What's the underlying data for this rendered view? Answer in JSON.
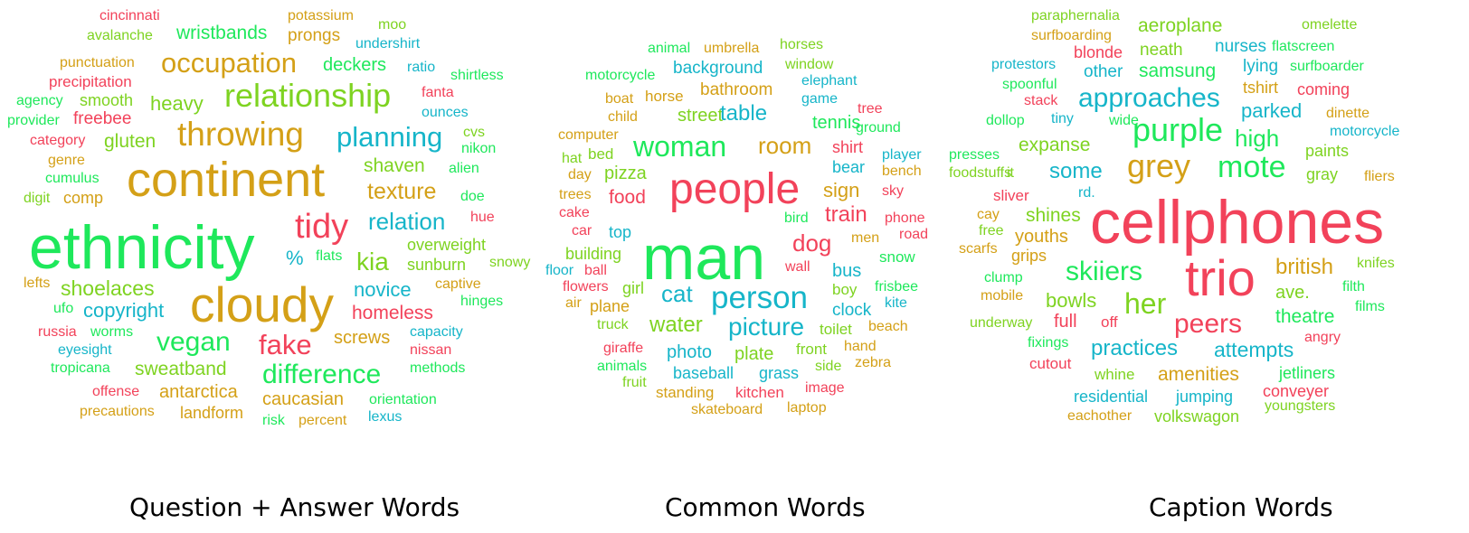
{
  "palette": {
    "orange": "#d4a017",
    "green": "#1ee85b",
    "lime": "#7ed321",
    "cyan": "#16b5c9",
    "red": "#f2425a"
  },
  "captions": {
    "qa": "Question + Answer Words",
    "common": "Common Words",
    "caption": "Caption Words"
  },
  "clouds": {
    "qa": [
      {
        "text": "cincinnati",
        "color": "red"
      },
      {
        "text": "potassium",
        "color": "orange"
      },
      {
        "text": "moo",
        "color": "lime"
      },
      {
        "text": "avalanche",
        "color": "lime"
      },
      {
        "text": "wristbands",
        "color": "green"
      },
      {
        "text": "prongs",
        "color": "orange"
      },
      {
        "text": "undershirt",
        "color": "cyan"
      },
      {
        "text": "punctuation",
        "color": "orange"
      },
      {
        "text": "occupation",
        "color": "orange"
      },
      {
        "text": "deckers",
        "color": "green"
      },
      {
        "text": "ratio",
        "color": "cyan"
      },
      {
        "text": "shirtless",
        "color": "green"
      },
      {
        "text": "precipitation",
        "color": "red"
      },
      {
        "text": "fanta",
        "color": "red"
      },
      {
        "text": "agency",
        "color": "green"
      },
      {
        "text": "smooth",
        "color": "lime"
      },
      {
        "text": "heavy",
        "color": "lime"
      },
      {
        "text": "relationship",
        "color": "lime"
      },
      {
        "text": "ounces",
        "color": "cyan"
      },
      {
        "text": "provider",
        "color": "green"
      },
      {
        "text": "freebee",
        "color": "red"
      },
      {
        "text": "throwing",
        "color": "orange"
      },
      {
        "text": "planning",
        "color": "cyan"
      },
      {
        "text": "cvs",
        "color": "lime"
      },
      {
        "text": "category",
        "color": "red"
      },
      {
        "text": "gluten",
        "color": "lime"
      },
      {
        "text": "nikon",
        "color": "green"
      },
      {
        "text": "genre",
        "color": "orange"
      },
      {
        "text": "shaven",
        "color": "lime"
      },
      {
        "text": "alien",
        "color": "green"
      },
      {
        "text": "cumulus",
        "color": "green"
      },
      {
        "text": "continent",
        "color": "orange"
      },
      {
        "text": "digit",
        "color": "lime"
      },
      {
        "text": "comp",
        "color": "orange"
      },
      {
        "text": "texture",
        "color": "orange"
      },
      {
        "text": "doe",
        "color": "green"
      },
      {
        "text": "tidy",
        "color": "red"
      },
      {
        "text": "relation",
        "color": "cyan"
      },
      {
        "text": "hue",
        "color": "red"
      },
      {
        "text": "ethnicity",
        "color": "green"
      },
      {
        "text": "overweight",
        "color": "lime"
      },
      {
        "text": "%",
        "color": "cyan"
      },
      {
        "text": "flats",
        "color": "green"
      },
      {
        "text": "kia",
        "color": "lime"
      },
      {
        "text": "sunburn",
        "color": "lime"
      },
      {
        "text": "snowy",
        "color": "lime"
      },
      {
        "text": "lefts",
        "color": "orange"
      },
      {
        "text": "shoelaces",
        "color": "lime"
      },
      {
        "text": "novice",
        "color": "cyan"
      },
      {
        "text": "captive",
        "color": "orange"
      },
      {
        "text": "ufo",
        "color": "green"
      },
      {
        "text": "copyright",
        "color": "cyan"
      },
      {
        "text": "cloudy",
        "color": "orange"
      },
      {
        "text": "hinges",
        "color": "green"
      },
      {
        "text": "homeless",
        "color": "red"
      },
      {
        "text": "russia",
        "color": "red"
      },
      {
        "text": "worms",
        "color": "green"
      },
      {
        "text": "vegan",
        "color": "green"
      },
      {
        "text": "fake",
        "color": "red"
      },
      {
        "text": "screws",
        "color": "orange"
      },
      {
        "text": "capacity",
        "color": "cyan"
      },
      {
        "text": "eyesight",
        "color": "cyan"
      },
      {
        "text": "nissan",
        "color": "red"
      },
      {
        "text": "tropicana",
        "color": "green"
      },
      {
        "text": "sweatband",
        "color": "lime"
      },
      {
        "text": "difference",
        "color": "green"
      },
      {
        "text": "methods",
        "color": "green"
      },
      {
        "text": "offense",
        "color": "red"
      },
      {
        "text": "antarctica",
        "color": "orange"
      },
      {
        "text": "orientation",
        "color": "green"
      },
      {
        "text": "caucasian",
        "color": "orange"
      },
      {
        "text": "precautions",
        "color": "orange"
      },
      {
        "text": "landform",
        "color": "orange"
      },
      {
        "text": "risk",
        "color": "green"
      },
      {
        "text": "percent",
        "color": "orange"
      },
      {
        "text": "lexus",
        "color": "cyan"
      }
    ],
    "common": [
      {
        "text": "animal",
        "color": "green"
      },
      {
        "text": "umbrella",
        "color": "orange"
      },
      {
        "text": "horses",
        "color": "lime"
      },
      {
        "text": "motorcycle",
        "color": "green"
      },
      {
        "text": "background",
        "color": "cyan"
      },
      {
        "text": "window",
        "color": "lime"
      },
      {
        "text": "elephant",
        "color": "cyan"
      },
      {
        "text": "boat",
        "color": "orange"
      },
      {
        "text": "horse",
        "color": "orange"
      },
      {
        "text": "bathroom",
        "color": "orange"
      },
      {
        "text": "game",
        "color": "cyan"
      },
      {
        "text": "tree",
        "color": "red"
      },
      {
        "text": "child",
        "color": "orange"
      },
      {
        "text": "street",
        "color": "lime"
      },
      {
        "text": "table",
        "color": "cyan"
      },
      {
        "text": "tennis",
        "color": "green"
      },
      {
        "text": "ground",
        "color": "green"
      },
      {
        "text": "computer",
        "color": "orange"
      },
      {
        "text": "woman",
        "color": "green"
      },
      {
        "text": "room",
        "color": "orange"
      },
      {
        "text": "shirt",
        "color": "red"
      },
      {
        "text": "hat",
        "color": "lime"
      },
      {
        "text": "bed",
        "color": "lime"
      },
      {
        "text": "player",
        "color": "cyan"
      },
      {
        "text": "day",
        "color": "orange"
      },
      {
        "text": "pizza",
        "color": "lime"
      },
      {
        "text": "people",
        "color": "red"
      },
      {
        "text": "bear",
        "color": "cyan"
      },
      {
        "text": "bench",
        "color": "orange"
      },
      {
        "text": "trees",
        "color": "orange"
      },
      {
        "text": "food",
        "color": "red"
      },
      {
        "text": "sign",
        "color": "orange"
      },
      {
        "text": "sky",
        "color": "red"
      },
      {
        "text": "cake",
        "color": "red"
      },
      {
        "text": "train",
        "color": "red"
      },
      {
        "text": "bird",
        "color": "green"
      },
      {
        "text": "phone",
        "color": "red"
      },
      {
        "text": "car",
        "color": "red"
      },
      {
        "text": "top",
        "color": "cyan"
      },
      {
        "text": "man",
        "color": "green"
      },
      {
        "text": "dog",
        "color": "red"
      },
      {
        "text": "men",
        "color": "orange"
      },
      {
        "text": "road",
        "color": "red"
      },
      {
        "text": "building",
        "color": "lime"
      },
      {
        "text": "snow",
        "color": "green"
      },
      {
        "text": "floor",
        "color": "cyan"
      },
      {
        "text": "ball",
        "color": "red"
      },
      {
        "text": "wall",
        "color": "red"
      },
      {
        "text": "bus",
        "color": "cyan"
      },
      {
        "text": "flowers",
        "color": "red"
      },
      {
        "text": "girl",
        "color": "lime"
      },
      {
        "text": "cat",
        "color": "cyan"
      },
      {
        "text": "person",
        "color": "cyan"
      },
      {
        "text": "boy",
        "color": "lime"
      },
      {
        "text": "frisbee",
        "color": "green"
      },
      {
        "text": "air",
        "color": "orange"
      },
      {
        "text": "plane",
        "color": "orange"
      },
      {
        "text": "kite",
        "color": "cyan"
      },
      {
        "text": "clock",
        "color": "cyan"
      },
      {
        "text": "truck",
        "color": "lime"
      },
      {
        "text": "water",
        "color": "lime"
      },
      {
        "text": "picture",
        "color": "cyan"
      },
      {
        "text": "toilet",
        "color": "lime"
      },
      {
        "text": "beach",
        "color": "orange"
      },
      {
        "text": "giraffe",
        "color": "red"
      },
      {
        "text": "photo",
        "color": "cyan"
      },
      {
        "text": "plate",
        "color": "lime"
      },
      {
        "text": "front",
        "color": "lime"
      },
      {
        "text": "hand",
        "color": "orange"
      },
      {
        "text": "animals",
        "color": "green"
      },
      {
        "text": "baseball",
        "color": "cyan"
      },
      {
        "text": "grass",
        "color": "cyan"
      },
      {
        "text": "side",
        "color": "lime"
      },
      {
        "text": "zebra",
        "color": "orange"
      },
      {
        "text": "fruit",
        "color": "lime"
      },
      {
        "text": "standing",
        "color": "orange"
      },
      {
        "text": "kitchen",
        "color": "red"
      },
      {
        "text": "image",
        "color": "red"
      },
      {
        "text": "skateboard",
        "color": "orange"
      },
      {
        "text": "laptop",
        "color": "orange"
      }
    ],
    "caption": [
      {
        "text": "paraphernalia",
        "color": "lime"
      },
      {
        "text": "aeroplane",
        "color": "lime"
      },
      {
        "text": "omelette",
        "color": "lime"
      },
      {
        "text": "surfboarding",
        "color": "orange"
      },
      {
        "text": "blonde",
        "color": "red"
      },
      {
        "text": "neath",
        "color": "lime"
      },
      {
        "text": "nurses",
        "color": "cyan"
      },
      {
        "text": "flatscreen",
        "color": "green"
      },
      {
        "text": "protestors",
        "color": "cyan"
      },
      {
        "text": "other",
        "color": "cyan"
      },
      {
        "text": "samsung",
        "color": "green"
      },
      {
        "text": "lying",
        "color": "cyan"
      },
      {
        "text": "surfboarder",
        "color": "green"
      },
      {
        "text": "spoonful",
        "color": "green"
      },
      {
        "text": "tshirt",
        "color": "orange"
      },
      {
        "text": "coming",
        "color": "red"
      },
      {
        "text": "stack",
        "color": "red"
      },
      {
        "text": "approaches",
        "color": "cyan"
      },
      {
        "text": "parked",
        "color": "cyan"
      },
      {
        "text": "dinette",
        "color": "orange"
      },
      {
        "text": "dollop",
        "color": "green"
      },
      {
        "text": "tiny",
        "color": "cyan"
      },
      {
        "text": "wide",
        "color": "green"
      },
      {
        "text": "purple",
        "color": "green"
      },
      {
        "text": "motorcycle",
        "color": "cyan"
      },
      {
        "text": "high",
        "color": "green"
      },
      {
        "text": "expanse",
        "color": "lime"
      },
      {
        "text": "paints",
        "color": "lime"
      },
      {
        "text": "presses",
        "color": "green"
      },
      {
        "text": "mote",
        "color": "green"
      },
      {
        "text": "foodstuffs",
        "color": "lime"
      },
      {
        "text": "it",
        "color": "lime"
      },
      {
        "text": "some",
        "color": "cyan"
      },
      {
        "text": "grey",
        "color": "orange"
      },
      {
        "text": "gray",
        "color": "lime"
      },
      {
        "text": "fliers",
        "color": "orange"
      },
      {
        "text": "sliver",
        "color": "red"
      },
      {
        "text": "rd.",
        "color": "cyan"
      },
      {
        "text": "cay",
        "color": "orange"
      },
      {
        "text": "shines",
        "color": "lime"
      },
      {
        "text": "cellphones",
        "color": "red"
      },
      {
        "text": "free",
        "color": "lime"
      },
      {
        "text": "youths",
        "color": "orange"
      },
      {
        "text": "scarfs",
        "color": "orange"
      },
      {
        "text": "grips",
        "color": "orange"
      },
      {
        "text": "trio",
        "color": "red"
      },
      {
        "text": "british",
        "color": "orange"
      },
      {
        "text": "knifes",
        "color": "lime"
      },
      {
        "text": "skiiers",
        "color": "green"
      },
      {
        "text": "clump",
        "color": "green"
      },
      {
        "text": "ave.",
        "color": "lime"
      },
      {
        "text": "filth",
        "color": "green"
      },
      {
        "text": "mobile",
        "color": "orange"
      },
      {
        "text": "bowls",
        "color": "lime"
      },
      {
        "text": "her",
        "color": "lime"
      },
      {
        "text": "films",
        "color": "green"
      },
      {
        "text": "theatre",
        "color": "green"
      },
      {
        "text": "underway",
        "color": "lime"
      },
      {
        "text": "full",
        "color": "red"
      },
      {
        "text": "off",
        "color": "red"
      },
      {
        "text": "peers",
        "color": "red"
      },
      {
        "text": "angry",
        "color": "red"
      },
      {
        "text": "fixings",
        "color": "green"
      },
      {
        "text": "practices",
        "color": "cyan"
      },
      {
        "text": "attempts",
        "color": "cyan"
      },
      {
        "text": "cutout",
        "color": "red"
      },
      {
        "text": "whine",
        "color": "lime"
      },
      {
        "text": "amenities",
        "color": "orange"
      },
      {
        "text": "jetliners",
        "color": "green"
      },
      {
        "text": "conveyer",
        "color": "red"
      },
      {
        "text": "residential",
        "color": "cyan"
      },
      {
        "text": "jumping",
        "color": "cyan"
      },
      {
        "text": "youngsters",
        "color": "lime"
      },
      {
        "text": "eachother",
        "color": "orange"
      },
      {
        "text": "volkswagon",
        "color": "lime"
      }
    ]
  }
}
